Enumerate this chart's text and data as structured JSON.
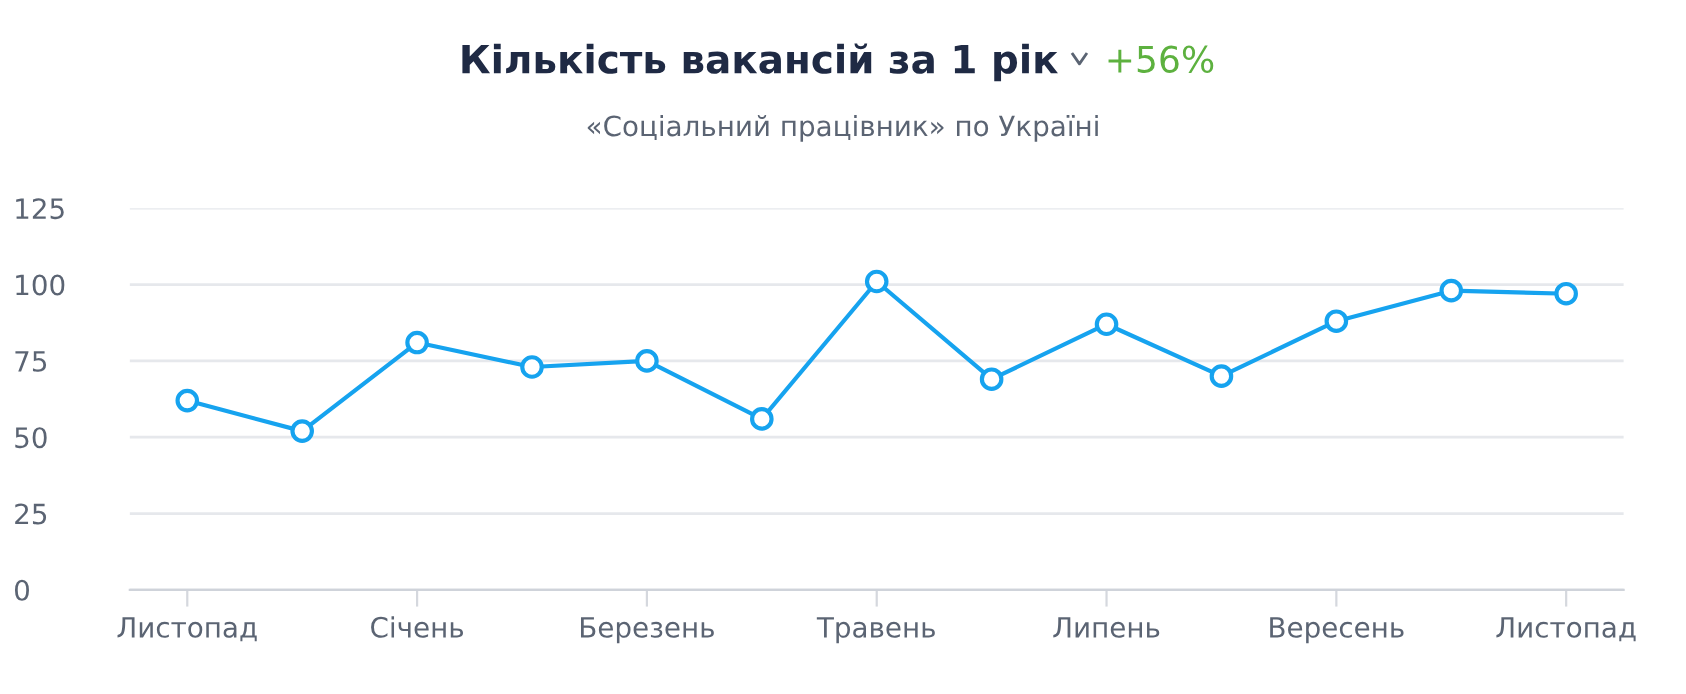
{
  "chart_data": {
    "type": "line",
    "title": "Кількість вакансій за 1 рік",
    "subtitle": "«Соціальний працівник» по Україні",
    "annotations": [
      "+56%"
    ],
    "categories": [
      "Листопад",
      null,
      "Січень",
      null,
      "Березень",
      null,
      "Травень",
      null,
      "Липень",
      null,
      "Вересень",
      null,
      "Листопад"
    ],
    "series": [
      {
        "color": "#16a3ef",
        "values": [
          62,
          52,
          81,
          73,
          75,
          56,
          101,
          69,
          87,
          70,
          88,
          98,
          97
        ]
      }
    ],
    "ylim": [
      0,
      125
    ],
    "yticks": [
      0,
      25,
      50,
      75,
      100,
      125
    ],
    "grid": "y",
    "marker": "circle",
    "line_style": "solid"
  }
}
